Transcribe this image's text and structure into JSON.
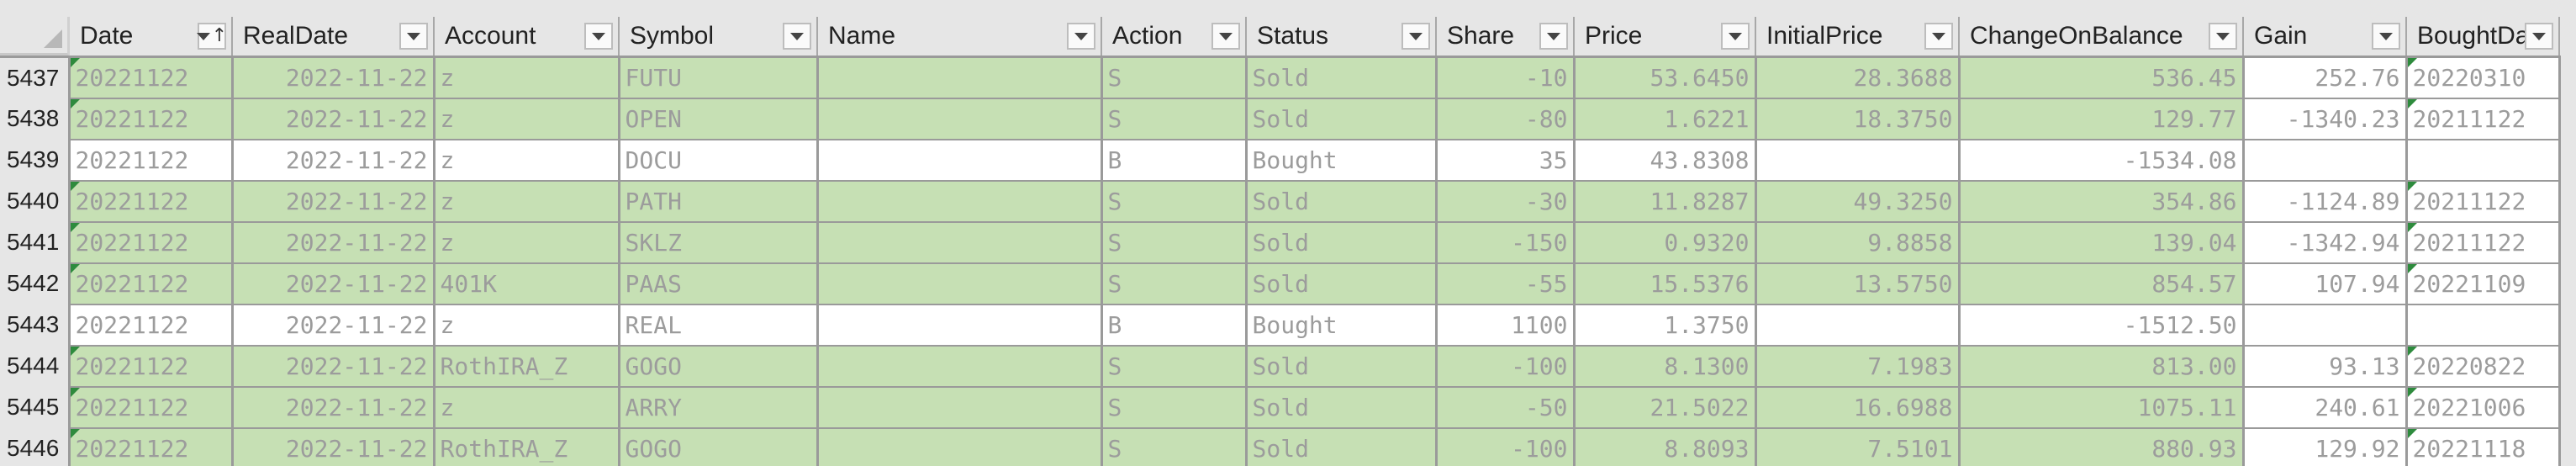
{
  "columns": [
    {
      "label": "Date",
      "sort": "↑"
    },
    {
      "label": "RealDate"
    },
    {
      "label": "Account"
    },
    {
      "label": "Symbol"
    },
    {
      "label": "Name"
    },
    {
      "label": "Action"
    },
    {
      "label": "Status"
    },
    {
      "label": "Share"
    },
    {
      "label": "Price"
    },
    {
      "label": "InitialPrice"
    },
    {
      "label": "ChangeOnBalance"
    },
    {
      "label": "Gain"
    },
    {
      "label": "BoughtDat"
    }
  ],
  "rows": [
    {
      "rownum": "5437",
      "type": "sold",
      "cells": [
        "20221122",
        "2022-11-22",
        "z",
        "FUTU",
        "",
        "S",
        "Sold",
        "-10",
        "53.6450",
        "28.3688",
        "536.45",
        "252.76",
        "20220310"
      ]
    },
    {
      "rownum": "5438",
      "type": "sold",
      "cells": [
        "20221122",
        "2022-11-22",
        "z",
        "OPEN",
        "",
        "S",
        "Sold",
        "-80",
        "1.6221",
        "18.3750",
        "129.77",
        "-1340.23",
        "20211122"
      ]
    },
    {
      "rownum": "5439",
      "type": "bought",
      "cells": [
        "20221122",
        "2022-11-22",
        "z",
        "DOCU",
        "",
        "B",
        "Bought",
        "35",
        "43.8308",
        "",
        "-1534.08",
        "",
        ""
      ]
    },
    {
      "rownum": "5440",
      "type": "sold",
      "cells": [
        "20221122",
        "2022-11-22",
        "z",
        "PATH",
        "",
        "S",
        "Sold",
        "-30",
        "11.8287",
        "49.3250",
        "354.86",
        "-1124.89",
        "20211122"
      ]
    },
    {
      "rownum": "5441",
      "type": "sold",
      "cells": [
        "20221122",
        "2022-11-22",
        "z",
        "SKLZ",
        "",
        "S",
        "Sold",
        "-150",
        "0.9320",
        "9.8858",
        "139.04",
        "-1342.94",
        "20211122"
      ]
    },
    {
      "rownum": "5442",
      "type": "sold",
      "cells": [
        "20221122",
        "2022-11-22",
        "401K",
        "PAAS",
        "",
        "S",
        "Sold",
        "-55",
        "15.5376",
        "13.5750",
        "854.57",
        "107.94",
        "20221109"
      ]
    },
    {
      "rownum": "5443",
      "type": "bought",
      "cells": [
        "20221122",
        "2022-11-22",
        "z",
        "REAL",
        "",
        "B",
        "Bought",
        "1100",
        "1.3750",
        "",
        "-1512.50",
        "",
        ""
      ]
    },
    {
      "rownum": "5444",
      "type": "sold",
      "cells": [
        "20221122",
        "2022-11-22",
        "RothIRA_Z",
        "GOGO",
        "",
        "S",
        "Sold",
        "-100",
        "8.1300",
        "7.1983",
        "813.00",
        "93.13",
        "20220822"
      ]
    },
    {
      "rownum": "5445",
      "type": "sold",
      "cells": [
        "20221122",
        "2022-11-22",
        "z",
        "ARRY",
        "",
        "S",
        "Sold",
        "-50",
        "21.5022",
        "16.6988",
        "1075.11",
        "240.61",
        "20221006"
      ]
    },
    {
      "rownum": "5446",
      "type": "sold",
      "cells": [
        "20221122",
        "2022-11-22",
        "RothIRA_Z",
        "GOGO",
        "",
        "S",
        "Sold",
        "-100",
        "8.8093",
        "7.5101",
        "880.93",
        "129.92",
        "20221118"
      ]
    }
  ],
  "colors": {
    "sold_fill": "#c6e0b4",
    "bought_fill": "#ffffff",
    "header_fill": "#e6e6e6",
    "comment_flag": "#2e8b3d"
  },
  "icons": {
    "filter": "dropdown-arrow",
    "sort": "sort-ascending-arrow"
  }
}
